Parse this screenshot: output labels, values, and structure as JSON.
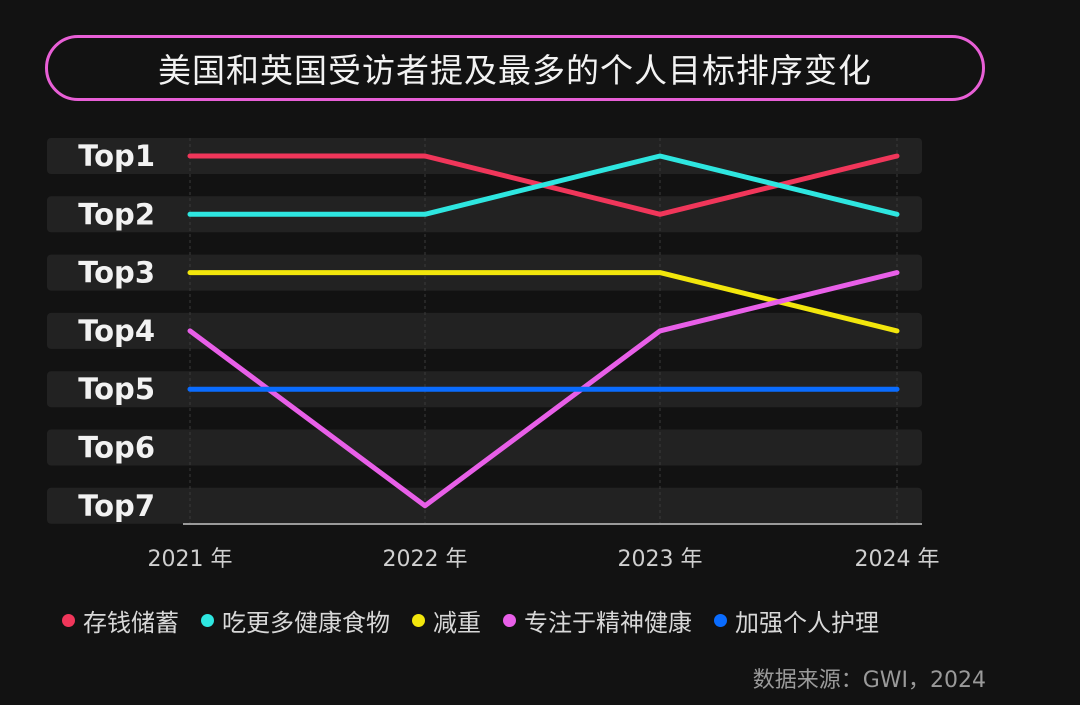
{
  "chart_data": {
    "type": "line",
    "title": "美国和英国受访者提及最多的个人目标排序变化",
    "categories": [
      "2021 年",
      "2022 年",
      "2023 年",
      "2024 年"
    ],
    "y_tick_labels": [
      "Top1",
      "Top2",
      "Top3",
      "Top4",
      "Top5",
      "Top6",
      "Top7"
    ],
    "ylim": [
      1,
      7
    ],
    "y_inverted": true,
    "grid": "vertical",
    "legend_position": "bottom",
    "series": [
      {
        "name": "存钱储蓄",
        "color": "#f0365a",
        "values": [
          1,
          1,
          2,
          1
        ]
      },
      {
        "name": "吃更多健康食物",
        "color": "#2ee6e0",
        "values": [
          2,
          2,
          1,
          2
        ]
      },
      {
        "name": "减重",
        "color": "#f2e60c",
        "values": [
          3,
          3,
          3,
          4
        ]
      },
      {
        "name": "专注于精神健康",
        "color": "#e85fe8",
        "values": [
          4,
          7,
          4,
          3
        ]
      },
      {
        "name": "加强个人护理",
        "color": "#0a6cff",
        "values": [
          5,
          5,
          5,
          5
        ]
      }
    ]
  },
  "source": "数据来源：GWI，2024"
}
